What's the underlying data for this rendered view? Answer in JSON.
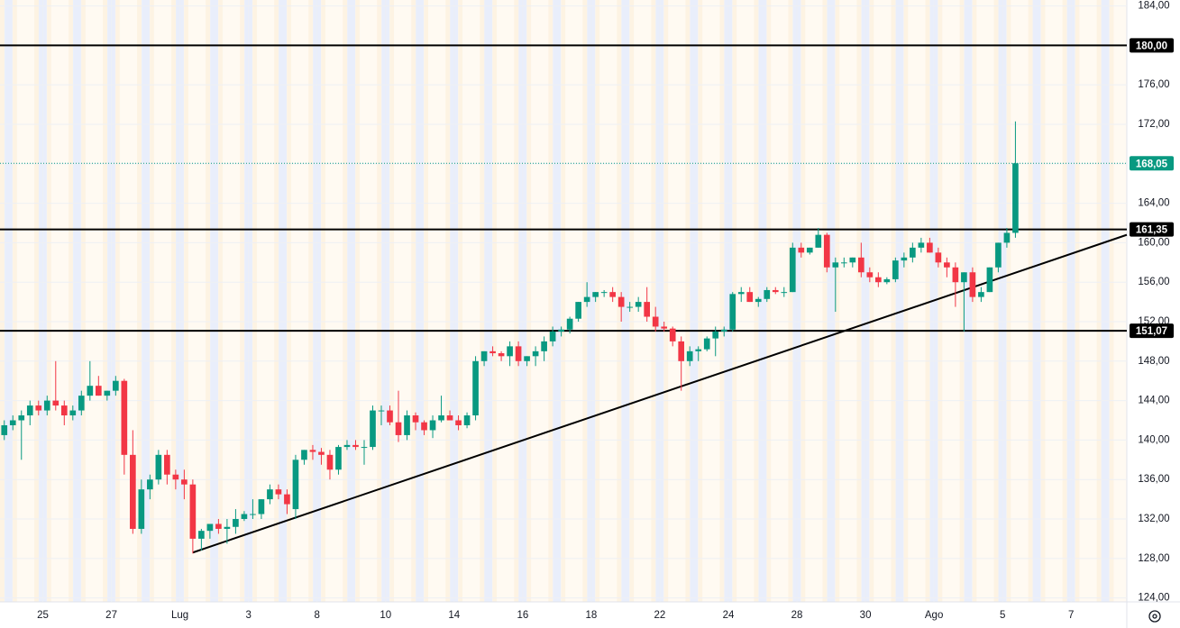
{
  "chart_data": {
    "type": "candlestick",
    "x": [
      0,
      1,
      2,
      3,
      4,
      5,
      6,
      7,
      8,
      9,
      10,
      11,
      12,
      13,
      14,
      15,
      16,
      17,
      18,
      19,
      20,
      21,
      22,
      23,
      24,
      25,
      26,
      27,
      28,
      29,
      30,
      31,
      32,
      33,
      34,
      35,
      36,
      37,
      38,
      39,
      40,
      41,
      42,
      43,
      44,
      45,
      46,
      47,
      48,
      49,
      50,
      51,
      52,
      53,
      54,
      55,
      56,
      57,
      58,
      59,
      60,
      61,
      62,
      63,
      64,
      65,
      66,
      67,
      68,
      69,
      70,
      71,
      72,
      73,
      74,
      75,
      76,
      77,
      78,
      79,
      80,
      81,
      82,
      83,
      84,
      85,
      86,
      87,
      88,
      89,
      90,
      91,
      92,
      93,
      94,
      95,
      96,
      97,
      98,
      99,
      100,
      101,
      102,
      103,
      104,
      105,
      106,
      107,
      108,
      109,
      110,
      111,
      112,
      113,
      114,
      115,
      116,
      117,
      118
    ],
    "open": [
      140.5,
      141.5,
      142,
      142.5,
      143.5,
      143,
      144,
      143.5,
      142.5,
      143,
      144.5,
      145.5,
      144.5,
      145,
      146,
      138.5,
      131,
      135,
      136,
      138.5,
      136.5,
      136,
      135.5,
      130,
      130.8,
      131.5,
      131,
      131.2,
      132,
      132.5,
      132.5,
      134,
      135,
      134.5,
      133,
      138,
      139,
      138.8,
      138.5,
      137,
      139.3,
      139.5,
      139.3,
      139.3,
      143,
      143,
      141.8,
      140.5,
      142.5,
      141.8,
      141,
      142,
      142.5,
      142,
      141.5,
      142.5,
      148,
      149,
      148.8,
      148.5,
      149.5,
      148,
      148.5,
      149,
      150,
      151,
      151.2,
      152.3,
      154,
      154.5,
      155,
      155,
      154.5,
      153.5,
      153.5,
      154,
      152.5,
      151.5,
      151.3,
      150,
      148,
      149,
      149.2,
      150.3,
      151,
      151.2,
      154.8,
      155,
      154,
      154.3,
      155.2,
      155,
      155,
      159.5,
      159,
      159.5,
      160.8,
      157.5,
      158,
      158,
      158.5,
      157,
      156.5,
      156,
      156.3,
      158.2,
      158.5,
      159.5,
      160,
      159,
      158,
      157.5,
      156,
      157,
      154.5,
      155,
      157.5,
      160,
      161
    ],
    "high": [
      142,
      142.5,
      143,
      144,
      144,
      144.5,
      148,
      144,
      143.5,
      145,
      148,
      146.5,
      145,
      146.5,
      146.2,
      141,
      136,
      136.5,
      139,
      139,
      137,
      137,
      136,
      131,
      131.5,
      132,
      132,
      133,
      132.8,
      134,
      134,
      135.5,
      135.5,
      135,
      138.5,
      139,
      139.5,
      139.2,
      139,
      139.5,
      140,
      140,
      140,
      143.5,
      143.5,
      143.5,
      145,
      143,
      142.8,
      142,
      142.5,
      144.5,
      143,
      142.5,
      142.8,
      148.5,
      149,
      149.5,
      149,
      150,
      150,
      148.5,
      149.5,
      150.5,
      151.5,
      151.5,
      152.5,
      154,
      156,
      155,
      155.2,
      155.5,
      155,
      154,
      154.5,
      155.5,
      153.5,
      152,
      151.5,
      150.5,
      149.5,
      149.5,
      150.5,
      151.5,
      151.5,
      155,
      155.5,
      155.5,
      154.5,
      155.5,
      155.5,
      155.5,
      160,
      160,
      159.5,
      161.5,
      161,
      158.5,
      158.5,
      158.5,
      160,
      157.5,
      157,
      156.5,
      158.5,
      159,
      160,
      160.5,
      160.5,
      159.5,
      158.5,
      158,
      157,
      157.5,
      155.5,
      157.5,
      160,
      161.5,
      172.3
    ],
    "low": [
      140,
      141,
      138,
      141.5,
      142.5,
      142.5,
      143,
      141.5,
      142,
      142.5,
      144,
      144.5,
      144,
      144.5,
      136.5,
      130.5,
      130.5,
      134,
      135.5,
      135.5,
      135,
      134,
      128.5,
      128.8,
      130,
      130.5,
      129.5,
      130.5,
      131.8,
      132,
      132,
      133.5,
      134,
      132.5,
      132,
      137.5,
      138,
      137.5,
      136,
      136.5,
      139,
      139,
      137.5,
      139,
      141.5,
      141.5,
      139.8,
      140,
      141,
      140.5,
      140.2,
      141.8,
      142,
      141,
      141.2,
      142,
      147.5,
      148.5,
      148,
      147.5,
      147.5,
      147.5,
      147.5,
      148,
      149.5,
      150.5,
      150.8,
      152,
      153.5,
      154,
      154.5,
      154,
      152,
      153,
      153,
      152,
      151,
      151,
      149.5,
      145,
      147.5,
      148,
      149,
      148.5,
      150.5,
      151,
      154,
      154,
      153.5,
      154,
      154.8,
      154.5,
      155,
      158.5,
      158.8,
      159.5,
      157,
      153,
      157.5,
      157.5,
      156.5,
      156,
      155.5,
      155.8,
      156,
      157.5,
      158,
      159,
      159,
      157.5,
      156.5,
      153.5,
      151,
      154,
      154,
      155,
      157,
      159.5,
      160.5
    ],
    "close": [
      141.5,
      142,
      142.5,
      143.5,
      143,
      144,
      143.5,
      142.5,
      143,
      144.5,
      145.5,
      144.5,
      145,
      146,
      138.5,
      131,
      135,
      136,
      138.5,
      136.5,
      136,
      135.5,
      130,
      130.8,
      131.5,
      131,
      131.2,
      132,
      132.5,
      132.5,
      134,
      135,
      134.5,
      133.5,
      138,
      139,
      138.8,
      138.5,
      137,
      139.3,
      139.5,
      139.3,
      139.3,
      143,
      143,
      141.8,
      140.5,
      142.5,
      141.8,
      141,
      142,
      142.5,
      142,
      141.5,
      142.5,
      148,
      149,
      148.8,
      148.5,
      149.5,
      148,
      148.5,
      149,
      150,
      151,
      151.2,
      152.3,
      154,
      154.5,
      155,
      155,
      154.5,
      153.5,
      153.5,
      154,
      152.5,
      151.5,
      151.3,
      150,
      148,
      149,
      149.2,
      150.3,
      151,
      151.2,
      154.8,
      155,
      154,
      154.3,
      155.2,
      155,
      155,
      159.5,
      159,
      159.5,
      160.8,
      157.5,
      158,
      158,
      158.5,
      157,
      156.5,
      156,
      156.3,
      158.2,
      158.5,
      159.5,
      160,
      159,
      158,
      157.5,
      156,
      157,
      154.5,
      155,
      157.5,
      160,
      161,
      168.05
    ],
    "up_color": "#089981",
    "down_color": "#f23645",
    "xlim": [
      -0.5,
      131
    ],
    "xticks": [
      {
        "value": 4.5,
        "label": "25"
      },
      {
        "value": 12.5,
        "label": "27"
      },
      {
        "value": 20.5,
        "label": "Lug"
      },
      {
        "value": 28.5,
        "label": "3"
      },
      {
        "value": 36.5,
        "label": "8"
      },
      {
        "value": 44.5,
        "label": "10"
      },
      {
        "value": 52.5,
        "label": "14"
      },
      {
        "value": 60.5,
        "label": "16"
      },
      {
        "value": 68.5,
        "label": "18"
      },
      {
        "value": 76.5,
        "label": "22"
      },
      {
        "value": 84.5,
        "label": "24"
      },
      {
        "value": 92.5,
        "label": "28"
      },
      {
        "value": 100.5,
        "label": "30"
      },
      {
        "value": 108.5,
        "label": "Ago"
      },
      {
        "value": 116.5,
        "label": "5"
      },
      {
        "value": 124.5,
        "label": "7"
      }
    ],
    "ylim": [
      123.6,
      184.6
    ],
    "yticks": [
      {
        "value": 124,
        "label": "124,00"
      },
      {
        "value": 128,
        "label": "128,00"
      },
      {
        "value": 132,
        "label": "132,00"
      },
      {
        "value": 136,
        "label": "136,00"
      },
      {
        "value": 140,
        "label": "140,00"
      },
      {
        "value": 144,
        "label": "144,00"
      },
      {
        "value": 148,
        "label": "148,00"
      },
      {
        "value": 152,
        "label": "152,00"
      },
      {
        "value": 156,
        "label": "156,00"
      },
      {
        "value": 160,
        "label": "160,00"
      },
      {
        "value": 164,
        "label": "164,00"
      },
      {
        "value": 168,
        "label": "168,00"
      },
      {
        "value": 172,
        "label": "172,00"
      },
      {
        "value": 176,
        "label": "176,00"
      },
      {
        "value": 180,
        "label": "180,00"
      },
      {
        "value": 184,
        "label": "184,00"
      }
    ],
    "grid": true,
    "hlines": [
      {
        "value": 180,
        "label": "180,00"
      },
      {
        "value": 161.35,
        "label": "161,35"
      },
      {
        "value": 151.07,
        "label": "151,07"
      }
    ],
    "last_price": {
      "value": 168.05,
      "label": "168,05",
      "color": "#089981"
    },
    "trendline": {
      "x": [
        22,
        131
      ],
      "y": [
        128.6,
        160.8
      ]
    }
  }
}
